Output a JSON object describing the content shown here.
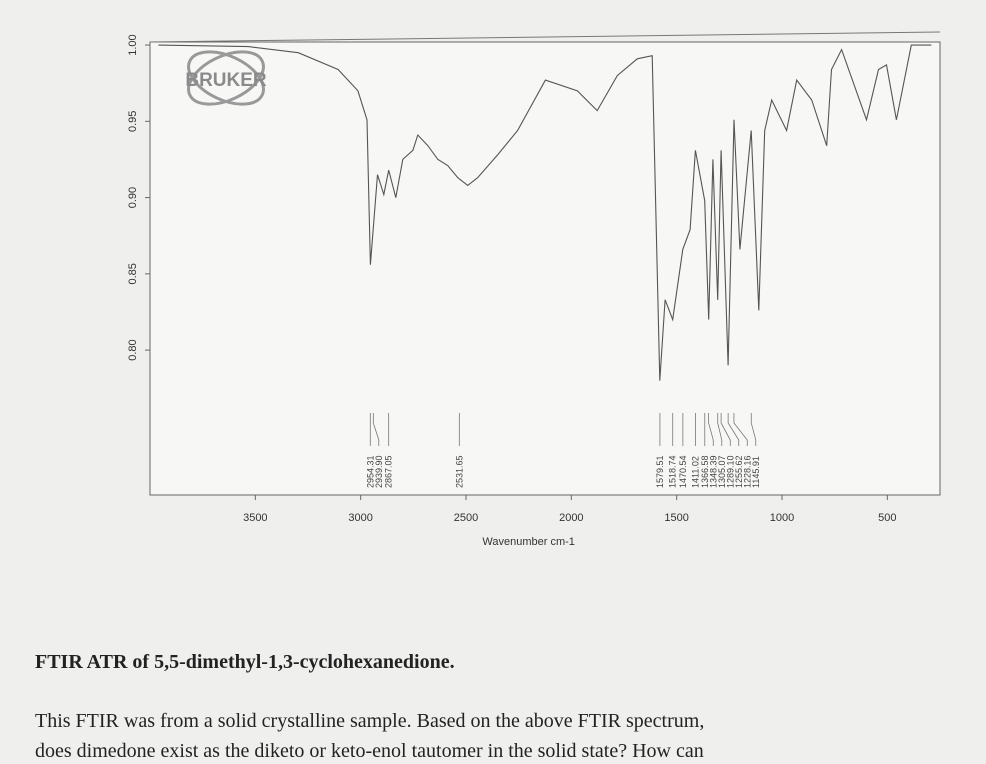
{
  "logo": "BRUKER",
  "heading": "FTIR ATR of 5,5-dimethyl-1,3-cyclohexanedione.",
  "paragraph": [
    "This FTIR was from a solid crystalline sample. Based on the above FTIR spectrum,",
    "does dimedone exist as the diketo or keto-enol tautomer in the solid state? How can"
  ],
  "chart_data": {
    "type": "line",
    "xlabel": "Wavenumber cm-1",
    "color": "#555555",
    "xlim": [
      4000,
      250
    ],
    "xticks": [
      3500,
      3000,
      2500,
      2000,
      1500,
      1000,
      500
    ],
    "ylim": [
      0.705,
      1.002
    ],
    "yticks": [
      {
        "value": 0.8,
        "label": "0.80"
      },
      {
        "value": 0.85,
        "label": "0.85"
      },
      {
        "value": 0.9,
        "label": "0.90"
      },
      {
        "value": 0.95,
        "label": "0.95"
      },
      {
        "value": 1.0,
        "label": "1.00"
      }
    ],
    "x": [
      3960,
      3533,
      3296,
      3107,
      3013,
      2970,
      2954,
      2920,
      2890,
      2867,
      2833,
      2800,
      2752,
      2729,
      2681,
      2634,
      2587,
      2539,
      2492,
      2445,
      2350,
      2255,
      2123,
      1971,
      1877,
      1782,
      1687,
      1616,
      1580,
      1555,
      1519,
      1471,
      1436,
      1411,
      1367,
      1348,
      1328,
      1305,
      1289,
      1256,
      1228,
      1200,
      1146,
      1110,
      1082,
      1049,
      978,
      930,
      859,
      788,
      765,
      717,
      599,
      542,
      504,
      457,
      386,
      339,
      291
    ],
    "values": [
      1.0,
      0.999,
      0.995,
      0.984,
      0.97,
      0.951,
      0.856,
      0.915,
      0.902,
      0.918,
      0.9,
      0.925,
      0.931,
      0.941,
      0.934,
      0.925,
      0.921,
      0.913,
      0.908,
      0.913,
      0.928,
      0.944,
      0.977,
      0.97,
      0.957,
      0.98,
      0.991,
      0.993,
      0.78,
      0.833,
      0.82,
      0.866,
      0.879,
      0.931,
      0.898,
      0.82,
      0.925,
      0.833,
      0.931,
      0.79,
      0.951,
      0.866,
      0.944,
      0.826,
      0.944,
      0.964,
      0.944,
      0.977,
      0.964,
      0.934,
      0.984,
      0.997,
      0.951,
      0.984,
      0.987,
      0.951,
      1.0,
      1.0,
      1.0
    ],
    "peaks": [
      {
        "value": 2954.31,
        "label": "2954.31"
      },
      {
        "value": 2939.9,
        "label": "2939.90"
      },
      {
        "value": 2867.05,
        "label": "2867.05"
      },
      {
        "value": 2531.65,
        "label": "2531.65"
      },
      {
        "value": 1579.51,
        "label": "1579.51"
      },
      {
        "value": 1518.74,
        "label": "1518.74"
      },
      {
        "value": 1470.54,
        "label": "1470.54"
      },
      {
        "value": 1411.02,
        "label": "1411.02"
      },
      {
        "value": 1366.58,
        "label": "1366.58"
      },
      {
        "value": 1348.39,
        "label": "1348.39"
      },
      {
        "value": 1305.07,
        "label": "1305.07"
      },
      {
        "value": 1289.1,
        "label": "1289.10"
      },
      {
        "value": 1255.62,
        "label": "1255.62"
      },
      {
        "value": 1228.16,
        "label": "1228.16"
      },
      {
        "value": 1145.91,
        "label": "1145.91"
      }
    ]
  }
}
